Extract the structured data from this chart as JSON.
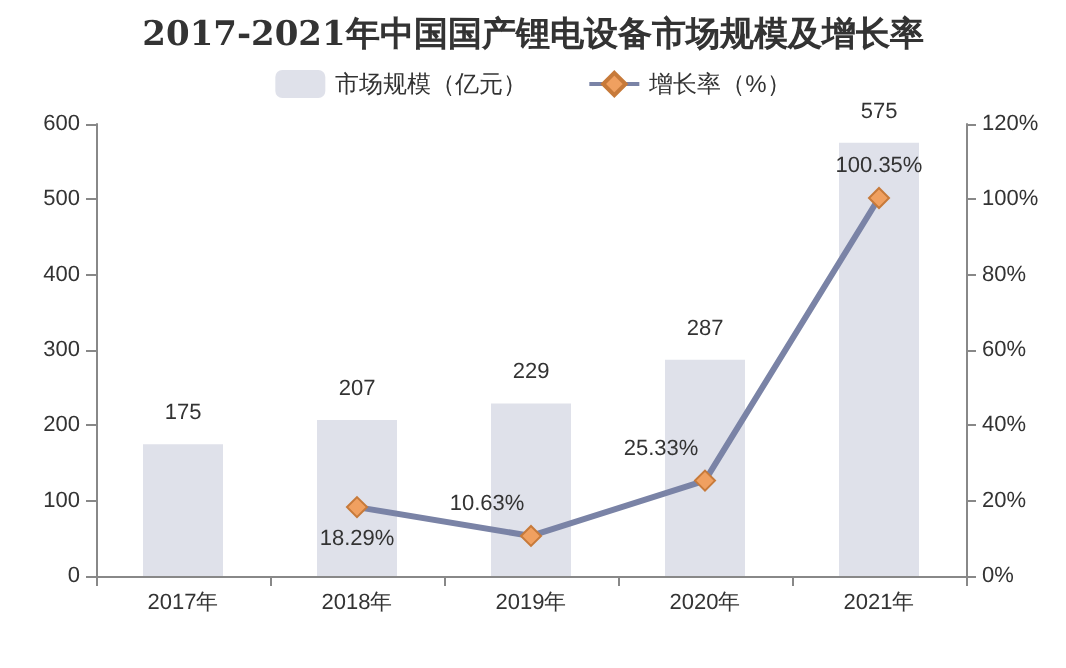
{
  "chart_data": {
    "type": "bar",
    "title": "2017-2021年中国国产锂电设备市场规模及增长率",
    "categories": [
      "2017年",
      "2018年",
      "2019年",
      "2020年",
      "2021年"
    ],
    "series": [
      {
        "name": "市场规模（亿元）",
        "color": "#dfe1ea",
        "values": [
          175,
          207,
          229,
          287,
          575
        ],
        "value_labels": [
          "175",
          "207",
          "229",
          "287",
          "575"
        ]
      },
      {
        "name": "增长率（%）",
        "type": "line",
        "axis": "y2",
        "color": "#7a83a6",
        "marker": "diamond",
        "values": [
          null,
          18.29,
          10.63,
          25.33,
          100.35
        ],
        "value_labels": [
          null,
          "18.29%",
          "10.63%",
          "25.33%",
          "100.35%"
        ]
      }
    ],
    "ylim": [
      0,
      600
    ],
    "yticks": [
      0,
      100,
      200,
      300,
      400,
      500,
      600
    ],
    "y2lim": [
      0,
      120
    ],
    "y2ticks": [
      {
        "value": 0,
        "label": "0%"
      },
      {
        "value": 20,
        "label": "20%"
      },
      {
        "value": 40,
        "label": "40%"
      },
      {
        "value": 60,
        "label": "60%"
      },
      {
        "value": 80,
        "label": "80%"
      },
      {
        "value": 100,
        "label": "100%"
      },
      {
        "value": 120,
        "label": "120%"
      }
    ],
    "legend": "top",
    "grid": false
  }
}
